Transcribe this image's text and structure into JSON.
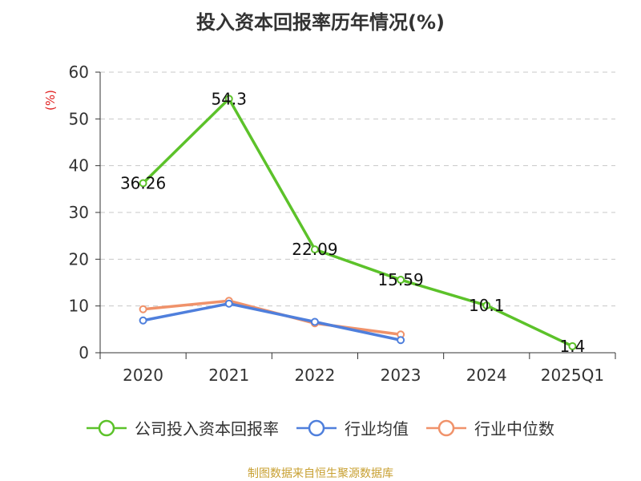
{
  "title": "投入资本回报率历年情况(%)",
  "source": "制图数据来自恒生聚源数据库",
  "chart_data": {
    "type": "line",
    "title": "投入资本回报率历年情况(%)",
    "ylabel": "(%)",
    "xlabel": "",
    "categories": [
      "2020",
      "2021",
      "2022",
      "2023",
      "2024",
      "2025Q1"
    ],
    "ylim": [
      0,
      60
    ],
    "yticks": [
      0,
      10,
      20,
      30,
      40,
      50,
      60
    ],
    "grid": true,
    "legend_position": "bottom",
    "series": [
      {
        "name": "公司投入资本回报率",
        "color": "#5cc22a",
        "values": [
          36.26,
          54.3,
          22.09,
          15.59,
          10.1,
          1.4
        ],
        "labels": [
          "36.26",
          "54.3",
          "22.09",
          "15.59",
          "10.1",
          "1.4"
        ]
      },
      {
        "name": "行业均值",
        "color": "#4f7fdc",
        "values": [
          6.9,
          10.5,
          6.6,
          2.7,
          null,
          null
        ]
      },
      {
        "name": "行业中位数",
        "color": "#f0926a",
        "values": [
          9.3,
          11.1,
          6.3,
          3.9,
          null,
          null
        ]
      }
    ]
  }
}
